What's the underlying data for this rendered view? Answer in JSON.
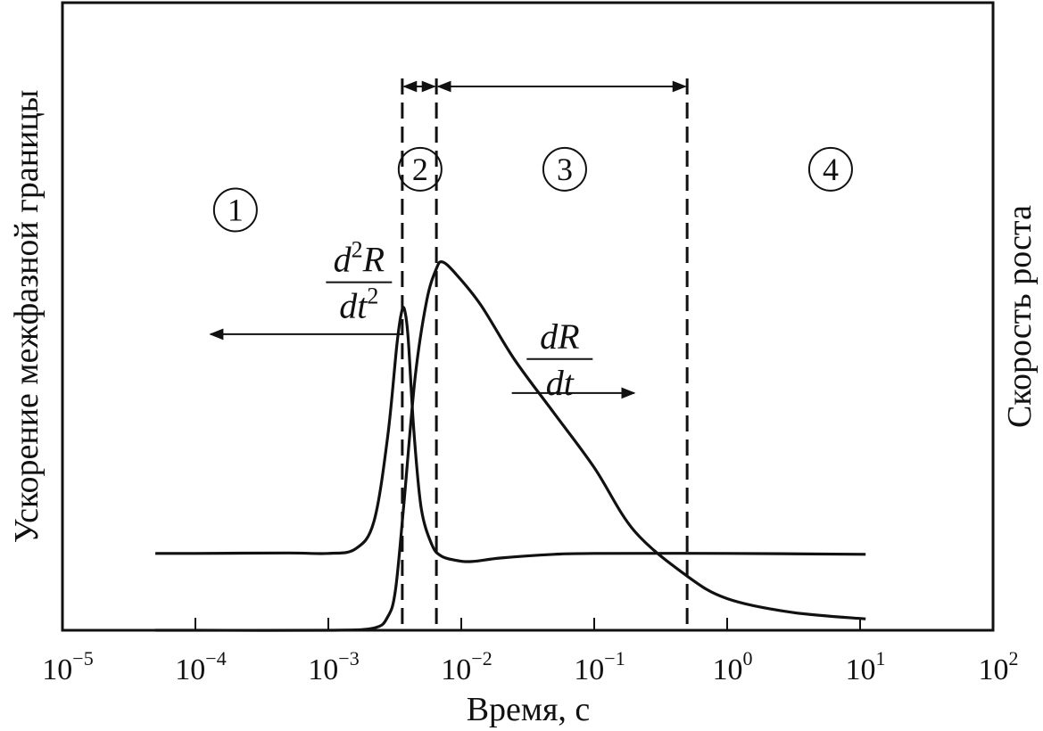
{
  "chart_data": {
    "type": "line",
    "xscale": "log",
    "xlim": [
      1e-05,
      100
    ],
    "x_ticks": [
      {
        "base": "10",
        "exp": "−5"
      },
      {
        "base": "10",
        "exp": "−4"
      },
      {
        "base": "10",
        "exp": "−3"
      },
      {
        "base": "10",
        "exp": "−2"
      },
      {
        "base": "10",
        "exp": "−1"
      },
      {
        "base": "10",
        "exp": "0"
      },
      {
        "base": "10",
        "exp": "1"
      },
      {
        "base": "10",
        "exp": "2"
      }
    ],
    "x_tick_values": [
      1e-05,
      0.0001,
      0.001,
      0.01,
      0.1,
      1,
      10,
      100
    ],
    "xlabel": "Время, с",
    "ylabel_left": "Ускорение межфазной границы",
    "ylabel_right": "Скорость роста",
    "ylim": [
      0,
      1
    ],
    "grid": false,
    "series": [
      {
        "name_num": "d",
        "name_sup": "2",
        "name_num_tail": "R",
        "name_den": "dt",
        "name_den_sup": "2",
        "axis": "left",
        "x": [
          5e-05,
          0.0001,
          0.0005,
          0.001,
          0.0016,
          0.0022,
          0.0028,
          0.0033,
          0.0036,
          0.0038,
          0.004,
          0.0044,
          0.005,
          0.006,
          0.007,
          0.009,
          0.012,
          0.02,
          0.05,
          0.1,
          1,
          11
        ],
        "y": [
          0.17,
          0.17,
          0.171,
          0.17,
          0.18,
          0.24,
          0.43,
          0.64,
          0.71,
          0.7,
          0.64,
          0.44,
          0.27,
          0.19,
          0.165,
          0.155,
          0.152,
          0.16,
          0.168,
          0.17,
          0.17,
          0.168
        ]
      },
      {
        "name_num": "dR",
        "name_den": "dt",
        "axis": "right",
        "x": [
          5e-05,
          0.0001,
          0.001,
          0.0022,
          0.0028,
          0.0032,
          0.0037,
          0.0045,
          0.0055,
          0.0065,
          0.0072,
          0.009,
          0.014,
          0.025,
          0.05,
          0.1,
          0.2,
          0.5,
          1,
          3,
          11
        ],
        "y": [
          0,
          0,
          0,
          0.005,
          0.03,
          0.09,
          0.28,
          0.56,
          0.73,
          0.8,
          0.815,
          0.79,
          0.72,
          0.6,
          0.48,
          0.36,
          0.22,
          0.12,
          0.07,
          0.04,
          0.025
        ]
      }
    ],
    "regions": [
      {
        "label": "1"
      },
      {
        "label": "2"
      },
      {
        "label": "3"
      },
      {
        "label": "4"
      }
    ],
    "vlines": [
      0.0036,
      0.0065,
      0.5
    ],
    "region_arrows": [
      {
        "from": 0.0036,
        "to": 0.0065
      },
      {
        "from": 0.0065,
        "to": 0.5
      }
    ],
    "region_label_positions": [
      {
        "x": 0.0002,
        "y": 0.93
      },
      {
        "x": 0.0049,
        "y": 1.02
      },
      {
        "x": 0.06,
        "y": 1.02
      },
      {
        "x": 6,
        "y": 1.02
      }
    ],
    "label_arrows": [
      {
        "series": 0,
        "from": [
          0.0036,
          0.655
        ],
        "to": [
          0.00013,
          0.655
        ]
      },
      {
        "series": 1,
        "from": [
          0.024,
          0.525
        ],
        "to": [
          0.2,
          0.525
        ]
      }
    ],
    "label_anchors": [
      {
        "series": 0,
        "x": 0.0017,
        "y": 0.77
      },
      {
        "series": 1,
        "x": 0.055,
        "y": 0.6
      }
    ]
  }
}
